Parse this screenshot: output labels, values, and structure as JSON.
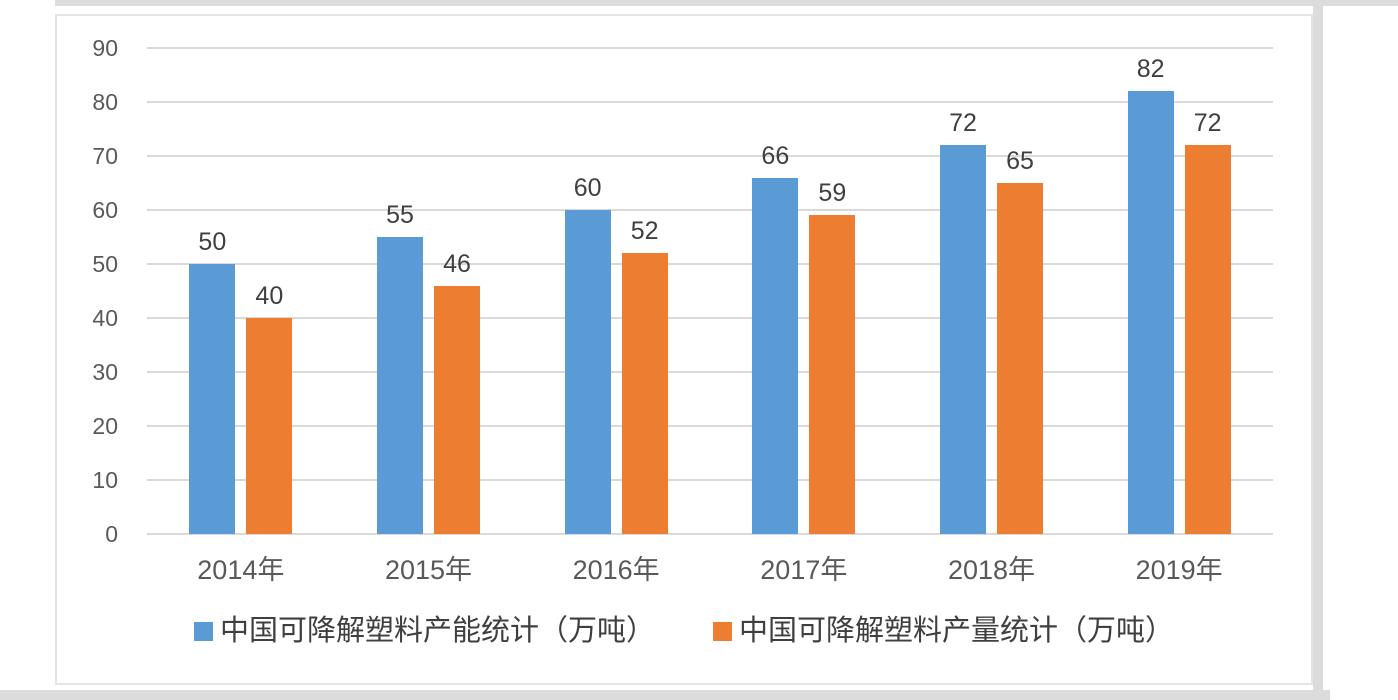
{
  "frame": {
    "background_color": "#ffffff",
    "panel_border_color": "#e5e5e5",
    "chrome_band_color": "#dcdcdc"
  },
  "chart_data": {
    "type": "bar",
    "title": "",
    "xlabel": "",
    "ylabel": "",
    "categories": [
      "2014年",
      "2015年",
      "2016年",
      "2017年",
      "2018年",
      "2019年"
    ],
    "series": [
      {
        "name": "中国可降解塑料产能统计（万吨）",
        "color": "#5B9BD5",
        "values": [
          50,
          55,
          60,
          66,
          72,
          82
        ]
      },
      {
        "name": "中国可降解塑料产量统计（万吨）",
        "color": "#ED7D31",
        "values": [
          40,
          46,
          52,
          59,
          65,
          72
        ]
      }
    ],
    "ylim": [
      0,
      90
    ],
    "yticks": [
      0,
      10,
      20,
      30,
      40,
      50,
      60,
      70,
      80,
      90
    ],
    "grid": true,
    "gridline_color": "#d9d9d9",
    "axis_text_color": "#595959",
    "data_label_color": "#3f3f3f",
    "legend_text_color": "#3f3f3f",
    "legend_position": "bottom",
    "data_labels": true
  }
}
